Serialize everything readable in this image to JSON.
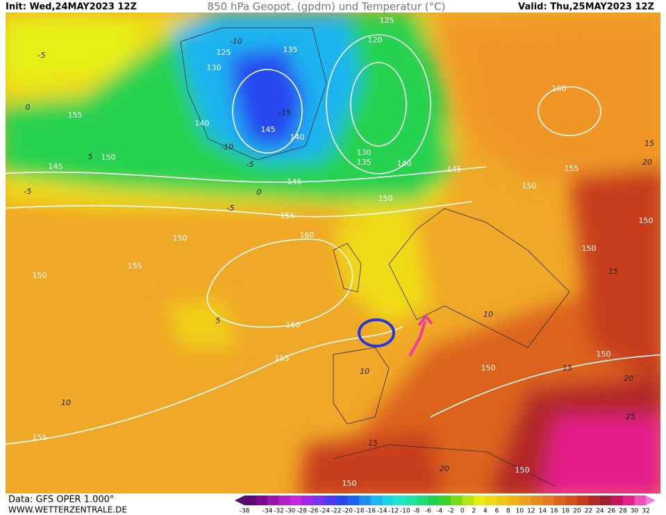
{
  "header": {
    "init": "Init: Wed,24MAY2023 12Z",
    "title": "850 hPa Geopot. (gpdm) und Temperatur (°C)",
    "valid": "Valid: Thu,25MAY2023 12Z"
  },
  "geopotential_labels": [
    125,
    120,
    125,
    135,
    130,
    160,
    155,
    140,
    145,
    140,
    150,
    130,
    135,
    140,
    145,
    145,
    145,
    155,
    150,
    150,
    155,
    150,
    160,
    150,
    150,
    155,
    150,
    160,
    150,
    155,
    150,
    155,
    150,
    150
  ],
  "temperature_labels": [
    -10,
    -5,
    0,
    -15,
    -10,
    -5,
    5,
    -5,
    0,
    -5,
    5,
    10,
    10,
    15,
    20,
    15,
    20,
    15,
    20,
    25,
    10,
    15
  ],
  "footer": {
    "data": "Data: GFS OPER 1.000°",
    "site": "WWW.WETTERZENTRALE.DE"
  },
  "colorbar": {
    "labels": [
      -38,
      -34,
      -32,
      -30,
      -28,
      -26,
      -24,
      -22,
      -20,
      -18,
      -16,
      -14,
      -12,
      -10,
      -8,
      -6,
      -4,
      -2,
      0,
      2,
      4,
      6,
      8,
      10,
      12,
      14,
      16,
      18,
      20,
      22,
      24,
      26,
      28,
      30,
      32
    ],
    "colors": [
      "#5a0a6e",
      "#780a8c",
      "#9614aa",
      "#b41ec8",
      "#c828dc",
      "#a028e6",
      "#7832f0",
      "#503cf0",
      "#2846f0",
      "#1e64f0",
      "#1e8cf0",
      "#1eb4f0",
      "#1ed2e6",
      "#1ee6c8",
      "#1ee6a0",
      "#1edc78",
      "#1ed250",
      "#3cd228",
      "#78dc14",
      "#b4e614",
      "#e6f014",
      "#f0dc14",
      "#f0c814",
      "#f0b414",
      "#f0a01e",
      "#e68c1e",
      "#e6781e",
      "#dc641e",
      "#d2501e",
      "#c83c1e",
      "#b42828",
      "#a01e32",
      "#c8145a",
      "#e61e8c",
      "#f050b4",
      "#f078dc"
    ]
  }
}
